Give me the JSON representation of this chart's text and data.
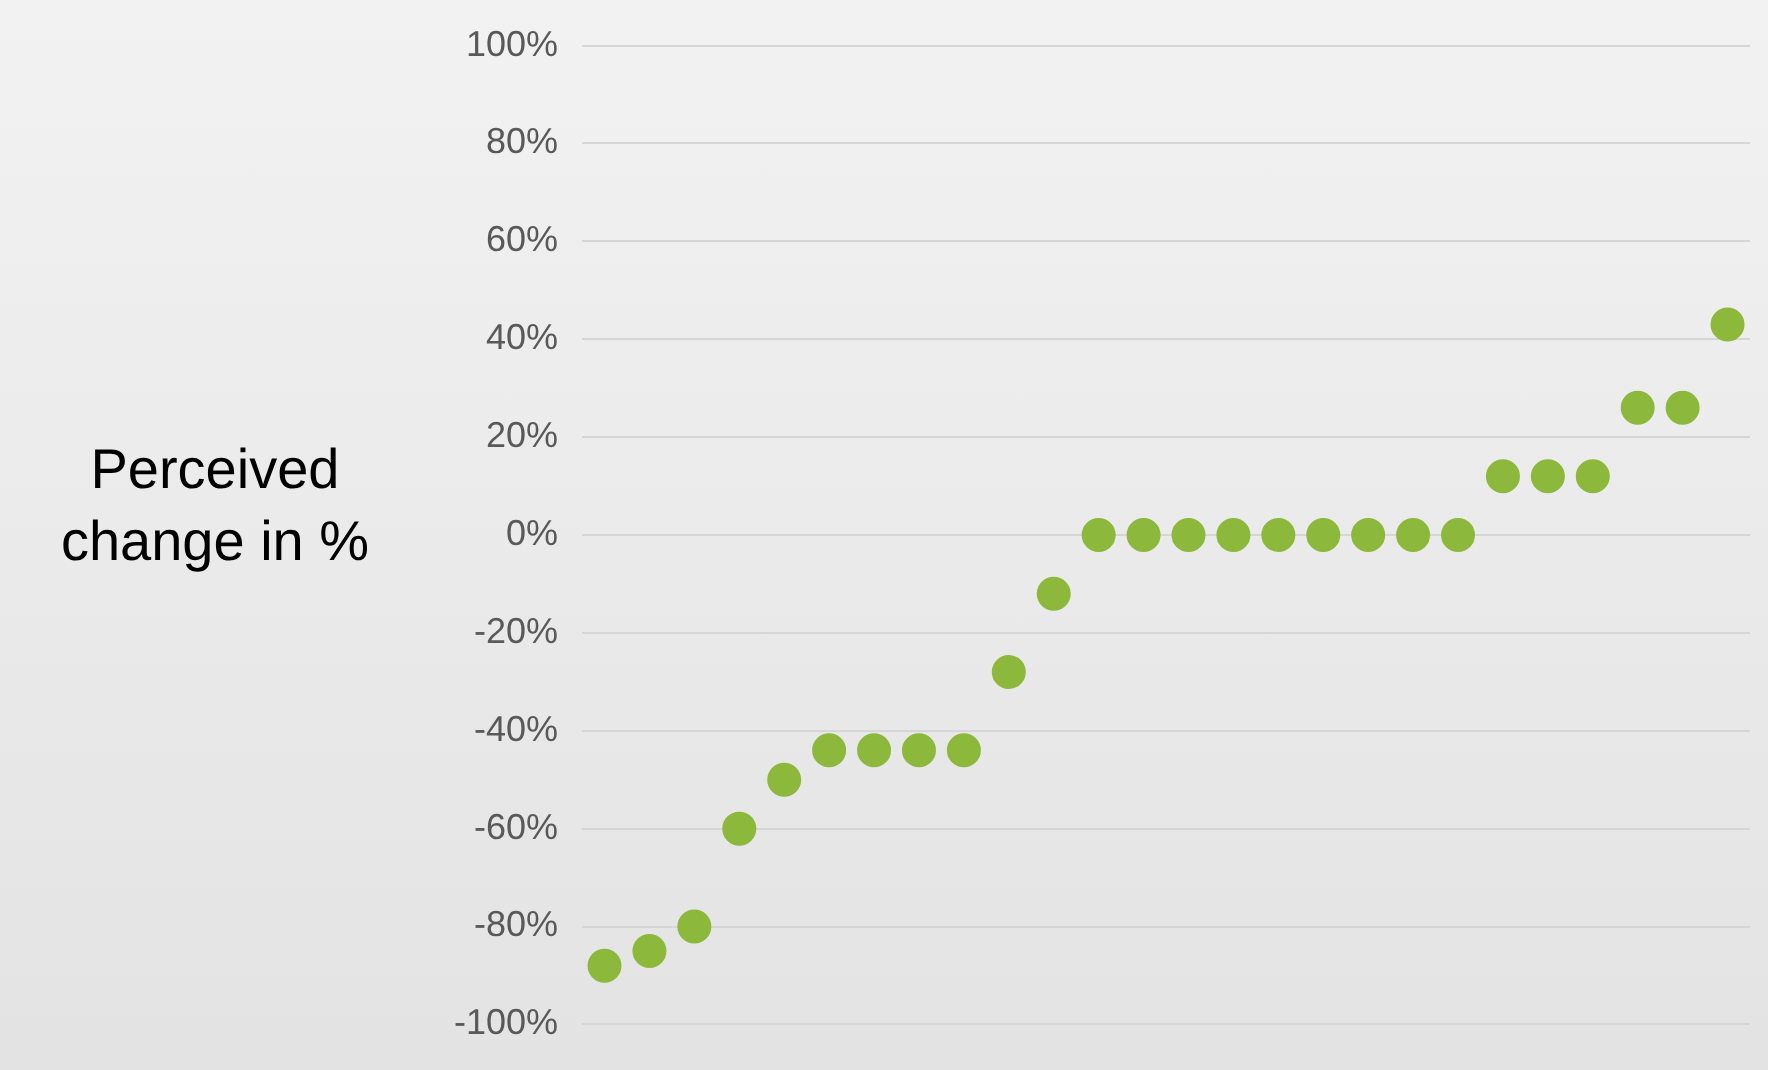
{
  "chart_data": {
    "type": "scatter",
    "ylabel": "Perceived change in %",
    "categories": [
      null,
      null,
      null,
      null,
      null,
      null,
      null,
      null,
      null,
      null,
      null,
      null,
      null,
      null,
      null,
      null,
      null,
      null,
      null,
      null,
      null,
      null,
      null,
      null,
      null,
      null
    ],
    "series": [
      {
        "color": "#8cb83c",
        "values": [
          -88,
          -85,
          -80,
          -60,
          -50,
          -44,
          -44,
          -44,
          -44,
          -28,
          -12,
          0,
          0,
          0,
          0,
          0,
          0,
          0,
          0,
          0,
          12,
          12,
          12,
          26,
          26,
          43
        ]
      }
    ],
    "ylim": [
      -100,
      100
    ],
    "yticks": [
      {
        "value": -100,
        "label": "-100%"
      },
      {
        "value": -80,
        "label": "-80%"
      },
      {
        "value": -60,
        "label": "-60%"
      },
      {
        "value": -40,
        "label": "-40%"
      },
      {
        "value": -20,
        "label": "-20%"
      },
      {
        "value": 0,
        "label": "0%"
      },
      {
        "value": 20,
        "label": "20%"
      },
      {
        "value": 40,
        "label": "40%"
      },
      {
        "value": 60,
        "label": "60%"
      },
      {
        "value": 80,
        "label": "80%"
      },
      {
        "value": 100,
        "label": "100%"
      }
    ],
    "grid": "y",
    "legend": false,
    "marker": "circle",
    "tick_labels": "y"
  }
}
